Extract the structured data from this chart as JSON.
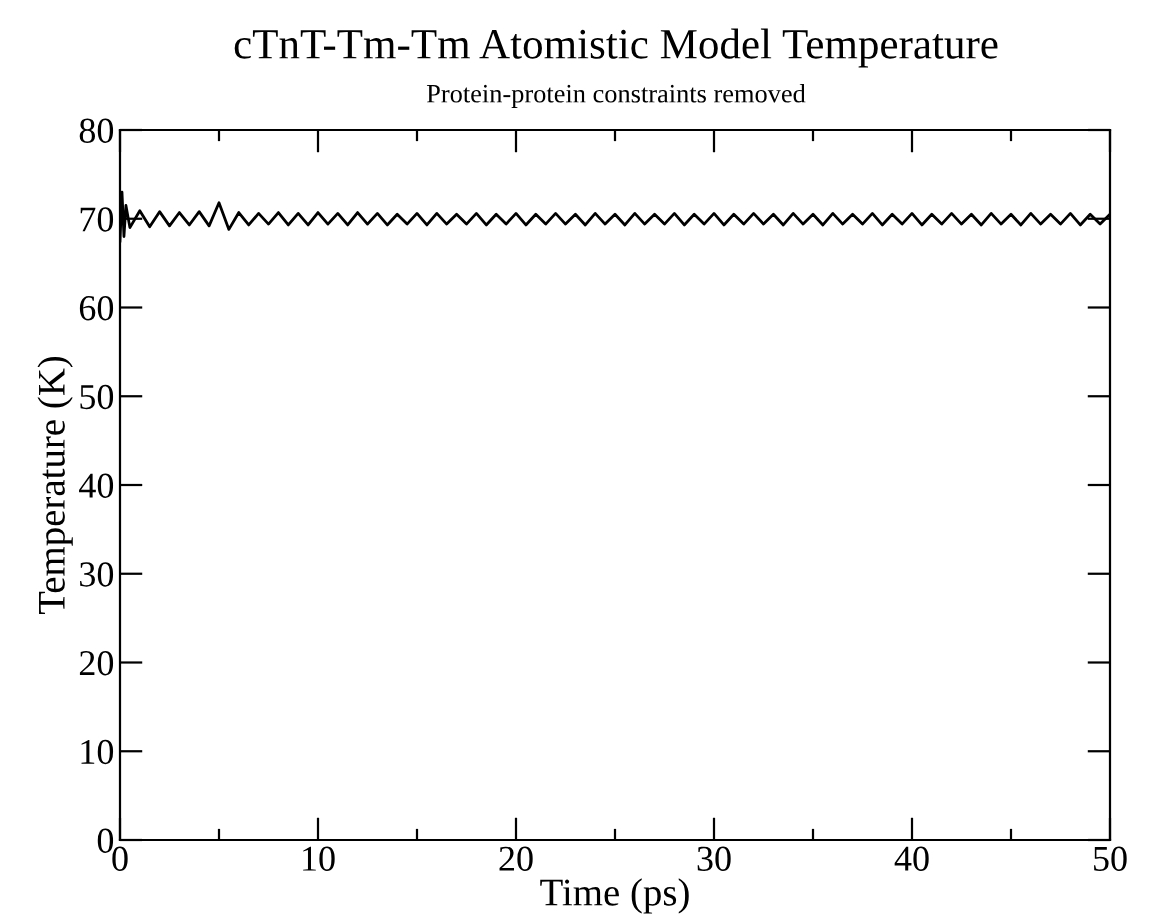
{
  "chart_data": {
    "type": "line",
    "title": "cTnT-Tm-Tm Atomistic Model Temperature",
    "subtitle": "Protein-protein constraints removed",
    "xlabel": "Time (ps)",
    "ylabel": "Temperature (K)",
    "series": [
      {
        "color": "#000000",
        "x": [
          0,
          0.1,
          0.2,
          0.3,
          0.5,
          1,
          1.5,
          2,
          2.5,
          3,
          3.5,
          4,
          4.5,
          5,
          5.5,
          6,
          6.5,
          7,
          7.5,
          8,
          8.5,
          9,
          9.5,
          10,
          10.5,
          11,
          11.5,
          12,
          12.5,
          13,
          13.5,
          14,
          14.5,
          15,
          15.5,
          16,
          16.5,
          17,
          17.5,
          18,
          18.5,
          19,
          19.5,
          20,
          20.5,
          21,
          21.5,
          22,
          22.5,
          23,
          23.5,
          24,
          24.5,
          25,
          25.5,
          26,
          26.5,
          27,
          27.5,
          28,
          28.5,
          29,
          29.5,
          30,
          30.5,
          31,
          31.5,
          32,
          32.5,
          33,
          33.5,
          34,
          34.5,
          35,
          35.5,
          36,
          36.5,
          37,
          37.5,
          38,
          38.5,
          39,
          39.5,
          40,
          40.5,
          41,
          41.5,
          42,
          42.5,
          43,
          43.5,
          44,
          44.5,
          45,
          45.5,
          46,
          46.5,
          47,
          47.5,
          48,
          48.5,
          49,
          49.5,
          50
        ],
        "values": [
          67.5,
          73,
          68,
          71.5,
          69,
          70.9,
          69.1,
          70.8,
          69.2,
          70.7,
          69.3,
          70.8,
          69.2,
          71.8,
          68.8,
          70.7,
          69.3,
          70.6,
          69.4,
          70.7,
          69.3,
          70.6,
          69.3,
          70.7,
          69.4,
          70.6,
          69.3,
          70.7,
          69.4,
          70.6,
          69.3,
          70.5,
          69.4,
          70.6,
          69.3,
          70.6,
          69.4,
          70.5,
          69.4,
          70.6,
          69.3,
          70.5,
          69.4,
          70.6,
          69.3,
          70.5,
          69.4,
          70.6,
          69.4,
          70.5,
          69.3,
          70.6,
          69.4,
          70.5,
          69.3,
          70.6,
          69.4,
          70.5,
          69.4,
          70.6,
          69.3,
          70.5,
          69.4,
          70.6,
          69.3,
          70.5,
          69.4,
          70.6,
          69.4,
          70.5,
          69.3,
          70.6,
          69.4,
          70.5,
          69.3,
          70.6,
          69.4,
          70.5,
          69.4,
          70.6,
          69.3,
          70.5,
          69.4,
          70.6,
          69.3,
          70.5,
          69.4,
          70.6,
          69.4,
          70.5,
          69.3,
          70.6,
          69.4,
          70.5,
          69.3,
          70.6,
          69.4,
          70.5,
          69.4,
          70.6,
          69.3,
          70.5,
          69.4,
          70.5
        ]
      }
    ],
    "xlim": [
      0,
      50
    ],
    "ylim": [
      0,
      80
    ],
    "xticks": [
      0,
      {
        "value": 5,
        "label": null
      },
      10,
      {
        "value": 15,
        "label": null
      },
      20,
      {
        "value": 25,
        "label": null
      },
      30,
      {
        "value": 35,
        "label": null
      },
      40,
      {
        "value": 45,
        "label": null
      },
      50
    ],
    "yticks": [
      0,
      10,
      20,
      30,
      40,
      50,
      60,
      70,
      80
    ],
    "grid": false,
    "marker": "none",
    "line_style": "solid"
  }
}
